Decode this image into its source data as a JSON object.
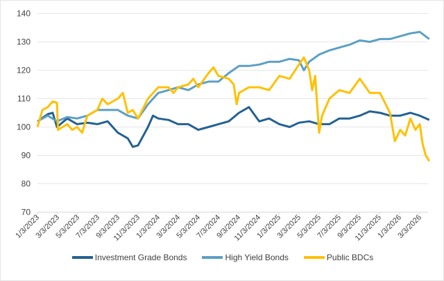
{
  "chart_data": {
    "type": "line",
    "title": "",
    "xlabel": "",
    "ylabel": "",
    "ylim": [
      70,
      140
    ],
    "yticks": [
      "70",
      "80",
      "90",
      "100",
      "110",
      "120",
      "130",
      "140"
    ],
    "xticks": [
      "1/3/2023",
      "3/3/2023",
      "5/3/2023",
      "7/3/2023",
      "9/3/2023",
      "11/3/2023",
      "1/3/2024",
      "3/3/2024",
      "5/3/2024",
      "7/3/2024",
      "9/3/2024",
      "11/3/2024",
      "1/3/2025",
      "3/3/2025",
      "5/3/2025",
      "7/3/2025",
      "9/3/2025",
      "11/3/2025",
      "1/3/2026",
      "3/3/2026"
    ],
    "grid": "horizontal",
    "legend_position": "bottom",
    "series": [
      {
        "name": "Investment Grade Bonds",
        "color": "#236192",
        "points": [
          [
            "2023-01-03",
            102
          ],
          [
            "2023-02-03",
            104.5
          ],
          [
            "2023-02-18",
            105
          ],
          [
            "2023-03-03",
            100
          ],
          [
            "2023-04-03",
            103
          ],
          [
            "2023-05-03",
            101
          ],
          [
            "2023-06-03",
            101.5
          ],
          [
            "2023-07-03",
            101
          ],
          [
            "2023-08-03",
            102
          ],
          [
            "2023-09-03",
            98
          ],
          [
            "2023-10-03",
            96
          ],
          [
            "2023-10-18",
            93
          ],
          [
            "2023-11-03",
            93.5
          ],
          [
            "2023-12-03",
            100
          ],
          [
            "2023-12-18",
            104
          ],
          [
            "2024-01-03",
            103
          ],
          [
            "2024-02-03",
            102.5
          ],
          [
            "2024-03-03",
            101
          ],
          [
            "2024-04-03",
            101
          ],
          [
            "2024-05-03",
            99
          ],
          [
            "2024-06-03",
            100
          ],
          [
            "2024-07-03",
            101
          ],
          [
            "2024-08-03",
            102
          ],
          [
            "2024-09-03",
            105
          ],
          [
            "2024-10-03",
            107
          ],
          [
            "2024-11-03",
            102
          ],
          [
            "2024-12-03",
            103
          ],
          [
            "2025-01-03",
            101
          ],
          [
            "2025-02-03",
            100
          ],
          [
            "2025-03-03",
            101.5
          ],
          [
            "2025-04-03",
            102
          ],
          [
            "2025-05-03",
            101
          ],
          [
            "2025-06-03",
            101
          ],
          [
            "2025-07-03",
            103
          ],
          [
            "2025-08-03",
            103
          ],
          [
            "2025-09-03",
            104
          ],
          [
            "2025-10-03",
            105.5
          ],
          [
            "2025-11-03",
            105
          ],
          [
            "2025-12-03",
            104
          ],
          [
            "2026-01-03",
            104
          ],
          [
            "2026-02-03",
            105
          ],
          [
            "2026-03-03",
            104
          ],
          [
            "2026-04-01",
            102.5
          ]
        ]
      },
      {
        "name": "High Yield Bonds",
        "color": "#5b9fc4",
        "points": [
          [
            "2023-01-03",
            102
          ],
          [
            "2023-02-03",
            104
          ],
          [
            "2023-03-03",
            102
          ],
          [
            "2023-04-03",
            103.5
          ],
          [
            "2023-05-03",
            103
          ],
          [
            "2023-06-03",
            104
          ],
          [
            "2023-07-03",
            106
          ],
          [
            "2023-08-03",
            106
          ],
          [
            "2023-09-03",
            106
          ],
          [
            "2023-10-03",
            104
          ],
          [
            "2023-11-03",
            103
          ],
          [
            "2023-12-03",
            108
          ],
          [
            "2024-01-03",
            112
          ],
          [
            "2024-02-03",
            113
          ],
          [
            "2024-03-03",
            114
          ],
          [
            "2024-04-03",
            113
          ],
          [
            "2024-05-03",
            115
          ],
          [
            "2024-06-03",
            116
          ],
          [
            "2024-07-03",
            116
          ],
          [
            "2024-08-03",
            119
          ],
          [
            "2024-09-03",
            121.5
          ],
          [
            "2024-10-03",
            121.5
          ],
          [
            "2024-11-03",
            122
          ],
          [
            "2024-12-03",
            123
          ],
          [
            "2025-01-03",
            123
          ],
          [
            "2025-02-03",
            124
          ],
          [
            "2025-03-03",
            123.5
          ],
          [
            "2025-03-18",
            120
          ],
          [
            "2025-04-03",
            123
          ],
          [
            "2025-05-03",
            125.5
          ],
          [
            "2025-06-03",
            127
          ],
          [
            "2025-07-03",
            128
          ],
          [
            "2025-08-03",
            129
          ],
          [
            "2025-09-03",
            130.5
          ],
          [
            "2025-10-03",
            130
          ],
          [
            "2025-11-03",
            131
          ],
          [
            "2025-12-03",
            131
          ],
          [
            "2026-01-03",
            132
          ],
          [
            "2026-02-03",
            133
          ],
          [
            "2026-03-03",
            133.5
          ],
          [
            "2026-04-01",
            131
          ]
        ]
      },
      {
        "name": "Public BDCs",
        "color": "#ffc000",
        "points": [
          [
            "2023-01-03",
            100
          ],
          [
            "2023-01-18",
            106
          ],
          [
            "2023-02-03",
            107
          ],
          [
            "2023-02-18",
            109
          ],
          [
            "2023-03-03",
            108.5
          ],
          [
            "2023-03-06",
            99
          ],
          [
            "2023-04-03",
            101
          ],
          [
            "2023-04-18",
            99
          ],
          [
            "2023-05-03",
            100
          ],
          [
            "2023-05-18",
            98
          ],
          [
            "2023-06-03",
            104
          ],
          [
            "2023-07-03",
            106
          ],
          [
            "2023-07-18",
            110
          ],
          [
            "2023-08-03",
            108
          ],
          [
            "2023-09-03",
            110
          ],
          [
            "2023-09-18",
            112
          ],
          [
            "2023-10-03",
            105
          ],
          [
            "2023-10-18",
            106
          ],
          [
            "2023-11-03",
            103
          ],
          [
            "2023-12-03",
            110
          ],
          [
            "2024-01-03",
            114
          ],
          [
            "2024-02-03",
            114
          ],
          [
            "2024-02-18",
            112
          ],
          [
            "2024-03-03",
            114
          ],
          [
            "2024-04-03",
            115
          ],
          [
            "2024-04-18",
            117
          ],
          [
            "2024-05-03",
            114
          ],
          [
            "2024-06-03",
            119
          ],
          [
            "2024-06-18",
            121
          ],
          [
            "2024-07-03",
            118
          ],
          [
            "2024-08-03",
            117
          ],
          [
            "2024-08-18",
            115
          ],
          [
            "2024-08-27",
            108
          ],
          [
            "2024-09-03",
            112
          ],
          [
            "2024-10-03",
            114
          ],
          [
            "2024-11-03",
            114
          ],
          [
            "2024-12-03",
            113
          ],
          [
            "2025-01-03",
            118
          ],
          [
            "2025-02-03",
            117
          ],
          [
            "2025-03-03",
            122
          ],
          [
            "2025-03-18",
            124.5
          ],
          [
            "2025-04-03",
            120
          ],
          [
            "2025-04-12",
            113
          ],
          [
            "2025-04-21",
            118
          ],
          [
            "2025-05-03",
            98
          ],
          [
            "2025-05-12",
            104
          ],
          [
            "2025-06-03",
            110
          ],
          [
            "2025-07-03",
            113
          ],
          [
            "2025-08-03",
            112
          ],
          [
            "2025-09-03",
            117
          ],
          [
            "2025-10-03",
            112
          ],
          [
            "2025-11-03",
            112
          ],
          [
            "2025-12-03",
            105
          ],
          [
            "2025-12-18",
            95
          ],
          [
            "2026-01-03",
            99
          ],
          [
            "2026-01-18",
            97
          ],
          [
            "2026-02-03",
            103
          ],
          [
            "2026-02-18",
            99
          ],
          [
            "2026-03-03",
            101
          ],
          [
            "2026-03-12",
            94
          ],
          [
            "2026-03-21",
            90
          ],
          [
            "2026-04-01",
            88
          ]
        ]
      }
    ]
  }
}
